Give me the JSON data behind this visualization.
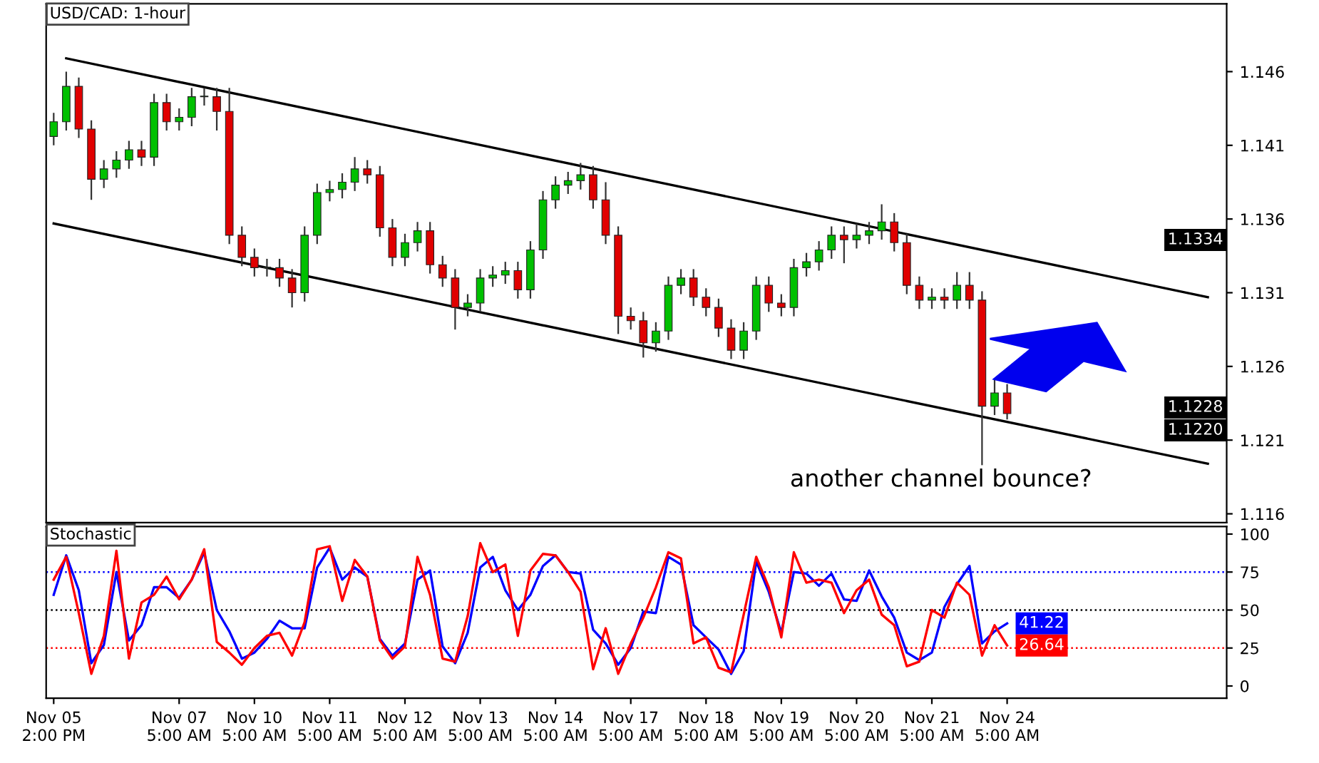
{
  "chart_data": [
    {
      "type": "candlestick",
      "title": "USD/CAD: 1-hour",
      "tick_labels": "y",
      "ylim": [
        1.1154,
        1.1506
      ],
      "yticks": [
        1.116,
        1.121,
        1.126,
        1.131,
        1.136,
        1.141,
        1.146
      ],
      "categories": [
        null,
        null,
        null,
        null,
        null,
        null,
        null,
        null,
        null,
        null,
        null,
        null,
        null,
        null,
        null,
        null,
        null,
        null,
        null,
        null,
        null,
        null,
        null,
        null,
        null,
        null,
        null,
        null,
        null,
        null,
        null,
        null,
        null,
        null,
        null,
        null,
        null,
        null,
        null,
        null,
        null,
        null,
        null,
        null,
        null,
        null,
        null,
        null,
        null,
        null,
        null,
        null,
        null,
        null,
        null,
        null,
        null,
        null,
        null,
        null,
        null,
        null,
        null,
        null,
        null,
        null,
        null,
        null,
        null,
        null,
        null,
        null,
        null,
        null,
        null,
        null,
        null,
        null,
        null,
        null,
        null,
        null,
        null,
        null,
        null,
        null,
        null,
        null,
        null,
        null,
        null,
        null,
        null,
        null
      ],
      "ohlc": [
        [
          1.1416,
          1.1432,
          1.141,
          1.1426
        ],
        [
          1.1426,
          1.146,
          1.142,
          1.145
        ],
        [
          1.145,
          1.1456,
          1.1415,
          1.1421
        ],
        [
          1.1421,
          1.1427,
          1.1373,
          1.1387
        ],
        [
          1.1387,
          1.14,
          1.1381,
          1.1394
        ],
        [
          1.1394,
          1.1406,
          1.1388,
          1.14
        ],
        [
          1.14,
          1.1413,
          1.1394,
          1.1407
        ],
        [
          1.1407,
          1.1413,
          1.1396,
          1.1402
        ],
        [
          1.1402,
          1.1445,
          1.1396,
          1.1439
        ],
        [
          1.1439,
          1.1445,
          1.142,
          1.1426
        ],
        [
          1.1426,
          1.1435,
          1.142,
          1.1429
        ],
        [
          1.1429,
          1.1449,
          1.1423,
          1.1443
        ],
        [
          1.1443,
          1.1449,
          1.1437,
          1.1443
        ],
        [
          1.1443,
          1.1449,
          1.142,
          1.1433
        ],
        [
          1.1433,
          1.1449,
          1.1343,
          1.1349
        ],
        [
          1.1349,
          1.1355,
          1.1328,
          1.1334
        ],
        [
          1.1334,
          1.134,
          1.1321,
          1.1327
        ],
        [
          1.1327,
          1.1333,
          1.1321,
          1.1327
        ],
        [
          1.1327,
          1.1333,
          1.1314,
          1.132
        ],
        [
          1.132,
          1.1326,
          1.13,
          1.131
        ],
        [
          1.131,
          1.1355,
          1.1304,
          1.1349
        ],
        [
          1.1349,
          1.1384,
          1.1343,
          1.1378
        ],
        [
          1.1378,
          1.1386,
          1.1372,
          1.138
        ],
        [
          1.138,
          1.1391,
          1.1374,
          1.1385
        ],
        [
          1.1385,
          1.1402,
          1.1379,
          1.1394
        ],
        [
          1.1394,
          1.14,
          1.1384,
          1.139
        ],
        [
          1.139,
          1.1396,
          1.1348,
          1.1354
        ],
        [
          1.1354,
          1.136,
          1.1328,
          1.1334
        ],
        [
          1.1334,
          1.135,
          1.1328,
          1.1344
        ],
        [
          1.1344,
          1.1358,
          1.1338,
          1.1352
        ],
        [
          1.1352,
          1.1358,
          1.1323,
          1.1329
        ],
        [
          1.1329,
          1.1335,
          1.1314,
          1.132
        ],
        [
          1.132,
          1.1326,
          1.1285,
          1.13
        ],
        [
          1.13,
          1.1309,
          1.1294,
          1.1303
        ],
        [
          1.1303,
          1.1326,
          1.1297,
          1.132
        ],
        [
          1.132,
          1.1328,
          1.1314,
          1.1322
        ],
        [
          1.1322,
          1.1331,
          1.1316,
          1.1325
        ],
        [
          1.1325,
          1.1331,
          1.1306,
          1.1312
        ],
        [
          1.1312,
          1.1345,
          1.1306,
          1.1339
        ],
        [
          1.1339,
          1.1379,
          1.1333,
          1.1373
        ],
        [
          1.1373,
          1.1389,
          1.1367,
          1.1383
        ],
        [
          1.1383,
          1.1392,
          1.1377,
          1.1386
        ],
        [
          1.1386,
          1.1398,
          1.138,
          1.139
        ],
        [
          1.139,
          1.1396,
          1.1367,
          1.1373
        ],
        [
          1.1373,
          1.1385,
          1.1343,
          1.1349
        ],
        [
          1.1349,
          1.1355,
          1.1282,
          1.1294
        ],
        [
          1.1294,
          1.13,
          1.1285,
          1.1291
        ],
        [
          1.1291,
          1.1297,
          1.1266,
          1.1276
        ],
        [
          1.1276,
          1.129,
          1.127,
          1.1284
        ],
        [
          1.1284,
          1.1321,
          1.1278,
          1.1315
        ],
        [
          1.1315,
          1.1326,
          1.1309,
          1.132
        ],
        [
          1.132,
          1.1326,
          1.1301,
          1.1307
        ],
        [
          1.1307,
          1.1313,
          1.1294,
          1.13
        ],
        [
          1.13,
          1.1306,
          1.128,
          1.1286
        ],
        [
          1.1286,
          1.1292,
          1.1265,
          1.1271
        ],
        [
          1.1271,
          1.129,
          1.1265,
          1.1284
        ],
        [
          1.1284,
          1.1321,
          1.1278,
          1.1315
        ],
        [
          1.1315,
          1.1321,
          1.1297,
          1.1303
        ],
        [
          1.1303,
          1.1309,
          1.1294,
          1.13
        ],
        [
          1.13,
          1.1333,
          1.1294,
          1.1327
        ],
        [
          1.1327,
          1.1337,
          1.1321,
          1.1331
        ],
        [
          1.1331,
          1.1345,
          1.1325,
          1.1339
        ],
        [
          1.1339,
          1.1355,
          1.1333,
          1.1349
        ],
        [
          1.1349,
          1.1355,
          1.133,
          1.1346
        ],
        [
          1.1346,
          1.1357,
          1.134,
          1.1349
        ],
        [
          1.1349,
          1.1358,
          1.1343,
          1.1352
        ],
        [
          1.1352,
          1.137,
          1.1346,
          1.1358
        ],
        [
          1.1358,
          1.1364,
          1.1338,
          1.1344
        ],
        [
          1.1344,
          1.135,
          1.1309,
          1.1315
        ],
        [
          1.1315,
          1.1321,
          1.1299,
          1.1305
        ],
        [
          1.1305,
          1.1313,
          1.1299,
          1.1307
        ],
        [
          1.1307,
          1.1313,
          1.1299,
          1.1305
        ],
        [
          1.1305,
          1.1324,
          1.1299,
          1.1315
        ],
        [
          1.1315,
          1.1324,
          1.1299,
          1.1305
        ],
        [
          1.1305,
          1.1311,
          1.1193,
          1.1233
        ],
        [
          1.1233,
          1.1252,
          1.1227,
          1.1242
        ],
        [
          1.1242,
          1.1248,
          1.1224,
          1.1228
        ],
        null,
        null,
        null,
        null,
        null,
        null,
        null,
        null,
        null,
        null,
        null,
        null,
        null,
        null,
        null,
        null,
        null
      ],
      "series": [
        {
          "type": "line",
          "color": "#000000",
          "values": [
            null,
            1.1469,
            null,
            null,
            null,
            null,
            null,
            null,
            null,
            null,
            null,
            null,
            null,
            null,
            null,
            null,
            null,
            null,
            null,
            null,
            null,
            null,
            null,
            null,
            null,
            null,
            null,
            null,
            null,
            null,
            null,
            null,
            null,
            null,
            null,
            null,
            null,
            null,
            null,
            null,
            null,
            null,
            null,
            null,
            null,
            null,
            null,
            null,
            null,
            null,
            null,
            null,
            null,
            null,
            null,
            null,
            null,
            null,
            null,
            null,
            null,
            null,
            null,
            null,
            null,
            null,
            null,
            null,
            null,
            null,
            null,
            null,
            null,
            null,
            null,
            null,
            null,
            null,
            null,
            null,
            null,
            null,
            null,
            null,
            null,
            null,
            null,
            null,
            null,
            null,
            null,
            null,
            1.1307,
            null
          ]
        },
        {
          "type": "line",
          "color": "#000000",
          "values": [
            1.1357,
            null,
            null,
            null,
            null,
            null,
            null,
            null,
            null,
            null,
            null,
            null,
            null,
            null,
            null,
            null,
            null,
            null,
            null,
            null,
            null,
            null,
            null,
            null,
            null,
            null,
            null,
            null,
            null,
            null,
            null,
            null,
            null,
            null,
            null,
            null,
            null,
            null,
            null,
            null,
            null,
            null,
            null,
            null,
            null,
            null,
            null,
            null,
            null,
            null,
            null,
            null,
            null,
            null,
            null,
            null,
            null,
            null,
            null,
            null,
            null,
            null,
            null,
            null,
            null,
            null,
            null,
            null,
            null,
            null,
            null,
            null,
            null,
            null,
            null,
            null,
            null,
            null,
            null,
            null,
            null,
            null,
            null,
            null,
            null,
            null,
            null,
            null,
            null,
            null,
            null,
            null,
            1.1194,
            null
          ]
        }
      ],
      "annotations": [
        "another channel bounce?",
        "1.1334",
        "1.1228",
        "1.1220"
      ]
    },
    {
      "type": "line",
      "title": "Stochastic",
      "ylim": [
        -8,
        105
      ],
      "yticks": [
        0,
        25,
        50,
        75,
        100
      ],
      "categories": [
        "Nov 05\n2:00 PM",
        null,
        null,
        null,
        null,
        null,
        null,
        null,
        null,
        null,
        "Nov 07\n5:00 AM",
        null,
        null,
        null,
        null,
        null,
        "Nov 10\n5:00 AM",
        null,
        null,
        null,
        null,
        null,
        "Nov 11\n5:00 AM",
        null,
        null,
        null,
        null,
        null,
        "Nov 12\n5:00 AM",
        null,
        null,
        null,
        null,
        null,
        "Nov 13\n5:00 AM",
        null,
        null,
        null,
        null,
        null,
        "Nov 14\n5:00 AM",
        null,
        null,
        null,
        null,
        null,
        "Nov 17\n5:00 AM",
        null,
        null,
        null,
        null,
        null,
        "Nov 18\n5:00 AM",
        null,
        null,
        null,
        null,
        null,
        "Nov 19\n5:00 AM",
        null,
        null,
        null,
        null,
        null,
        "Nov 20\n5:00 AM",
        null,
        null,
        null,
        null,
        null,
        "Nov 21\n5:00 AM",
        null,
        null,
        null,
        null,
        null,
        "Nov 24\n5:00 AM",
        null,
        null,
        null,
        null,
        null,
        null,
        null,
        null,
        null,
        null,
        null,
        null,
        null,
        null,
        null,
        null,
        null
      ],
      "series": [
        {
          "type": "line",
          "color": "#0000ff",
          "values": [
            60,
            86,
            63,
            15,
            27,
            75,
            30,
            40,
            65,
            65,
            58,
            70,
            88,
            50,
            36,
            18,
            22,
            31,
            43,
            38,
            38,
            78,
            91,
            70,
            78,
            72,
            31,
            20,
            28,
            70,
            76,
            26,
            15,
            35,
            78,
            85,
            63,
            50,
            60,
            79,
            86,
            75,
            74,
            37,
            28,
            14,
            25,
            49,
            48,
            85,
            80,
            40,
            32,
            24,
            8,
            23,
            82,
            62,
            35,
            75,
            74,
            66,
            74,
            57,
            56,
            76,
            59,
            45,
            22,
            17,
            22,
            52,
            67,
            79,
            28,
            36,
            41.22,
            null,
            null,
            null,
            null,
            null,
            null,
            null,
            null,
            null,
            null,
            null,
            null,
            null,
            null,
            null,
            null,
            null
          ],
          "value_labels": [
            null,
            null,
            null,
            null,
            null,
            null,
            null,
            null,
            null,
            null,
            null,
            null,
            null,
            null,
            null,
            null,
            null,
            null,
            null,
            null,
            null,
            null,
            null,
            null,
            null,
            null,
            null,
            null,
            null,
            null,
            null,
            null,
            null,
            null,
            null,
            null,
            null,
            null,
            null,
            null,
            null,
            null,
            null,
            null,
            null,
            null,
            null,
            null,
            null,
            null,
            null,
            null,
            null,
            null,
            null,
            null,
            null,
            null,
            null,
            null,
            null,
            null,
            null,
            null,
            null,
            null,
            null,
            null,
            null,
            null,
            null,
            null,
            null,
            null,
            null,
            null,
            "41.22",
            null,
            null,
            null,
            null,
            null,
            null,
            null,
            null,
            null,
            null,
            null,
            null,
            null,
            null,
            null,
            null,
            null
          ]
        },
        {
          "type": "line",
          "color": "#ff0000",
          "values": [
            70,
            85,
            48,
            8,
            33,
            89,
            18,
            55,
            60,
            72,
            57,
            70,
            90,
            29,
            22,
            14,
            25,
            33,
            35,
            20,
            42,
            90,
            92,
            56,
            83,
            72,
            30,
            18,
            26,
            85,
            60,
            18,
            16,
            46,
            94,
            75,
            80,
            33,
            76,
            87,
            86,
            75,
            62,
            11,
            38,
            8,
            28,
            45,
            65,
            88,
            84,
            28,
            32,
            12,
            9,
            47,
            85,
            65,
            32,
            88,
            68,
            70,
            68,
            48,
            63,
            70,
            47,
            40,
            13,
            16,
            50,
            45,
            68,
            60,
            20,
            40,
            26.64,
            null,
            null,
            null,
            null,
            null,
            null,
            null,
            null,
            null,
            null,
            null,
            null,
            null,
            null,
            null,
            null,
            null
          ],
          "value_labels": [
            null,
            null,
            null,
            null,
            null,
            null,
            null,
            null,
            null,
            null,
            null,
            null,
            null,
            null,
            null,
            null,
            null,
            null,
            null,
            null,
            null,
            null,
            null,
            null,
            null,
            null,
            null,
            null,
            null,
            null,
            null,
            null,
            null,
            null,
            null,
            null,
            null,
            null,
            null,
            null,
            null,
            null,
            null,
            null,
            null,
            null,
            null,
            null,
            null,
            null,
            null,
            null,
            null,
            null,
            null,
            null,
            null,
            null,
            null,
            null,
            null,
            null,
            null,
            null,
            null,
            null,
            null,
            null,
            null,
            null,
            null,
            null,
            null,
            null,
            null,
            null,
            "26.64",
            null,
            null,
            null,
            null,
            null,
            null,
            null,
            null,
            null,
            null,
            null,
            null,
            null,
            null,
            null,
            null,
            null
          ]
        }
      ],
      "ref_lines": [
        {
          "axis": "y",
          "value": 75,
          "color": "#0000ff",
          "line_style": "dotted"
        },
        {
          "axis": "y",
          "value": 50,
          "color": "#000000",
          "line_style": "dotted"
        },
        {
          "axis": "y",
          "value": 25,
          "color": "#ff0000",
          "line_style": "dotted"
        }
      ]
    }
  ]
}
